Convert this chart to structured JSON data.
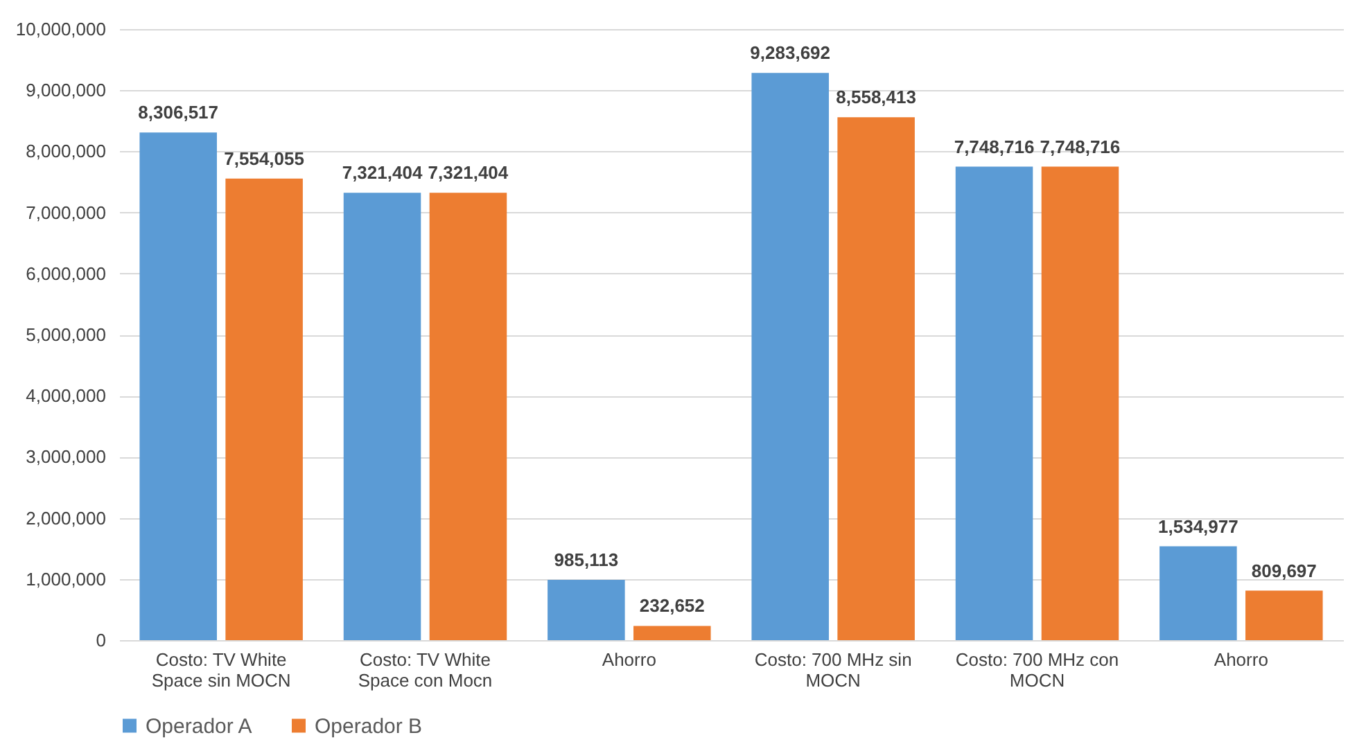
{
  "chart_data": {
    "type": "bar",
    "categories": [
      "Costo: TV White Space sin MOCN",
      "Costo: TV White Space con Mocn",
      "Ahorro",
      "Costo: 700 MHz sin MOCN",
      "Costo: 700 MHz con MOCN",
      "Ahorro"
    ],
    "series": [
      {
        "name": "Operador A",
        "color": "#5b9bd5",
        "values": [
          8306517,
          7321404,
          985113,
          9283692,
          7748716,
          1534977
        ],
        "value_labels": [
          "8,306,517",
          "7,321,404",
          "985,113",
          "9,283,692",
          "7,748,716",
          "1,534,977"
        ]
      },
      {
        "name": "Operador B",
        "color": "#ed7d31",
        "values": [
          7554055,
          7321404,
          232652,
          8558413,
          7748716,
          809697
        ],
        "value_labels": [
          "7,554,055",
          "7,321,404",
          "232,652",
          "8,558,413",
          "7,748,716",
          "809,697"
        ]
      }
    ],
    "ylim": [
      0,
      10000000
    ],
    "yticks": [
      0,
      {
        "value": 1000000,
        "label": "1,000,000"
      },
      {
        "value": 2000000,
        "label": "2,000,000"
      },
      {
        "value": 3000000,
        "label": "3,000,000"
      },
      {
        "value": 4000000,
        "label": "4,000,000"
      },
      {
        "value": 5000000,
        "label": "5,000,000"
      },
      {
        "value": 6000000,
        "label": "6,000,000"
      },
      {
        "value": 7000000,
        "label": "7,000,000"
      },
      {
        "value": 8000000,
        "label": "8,000,000"
      },
      {
        "value": 9000000,
        "label": "9,000,000"
      },
      {
        "value": 10000000,
        "label": "10,000,000"
      }
    ],
    "grid": "y",
    "legend": "bottom"
  }
}
